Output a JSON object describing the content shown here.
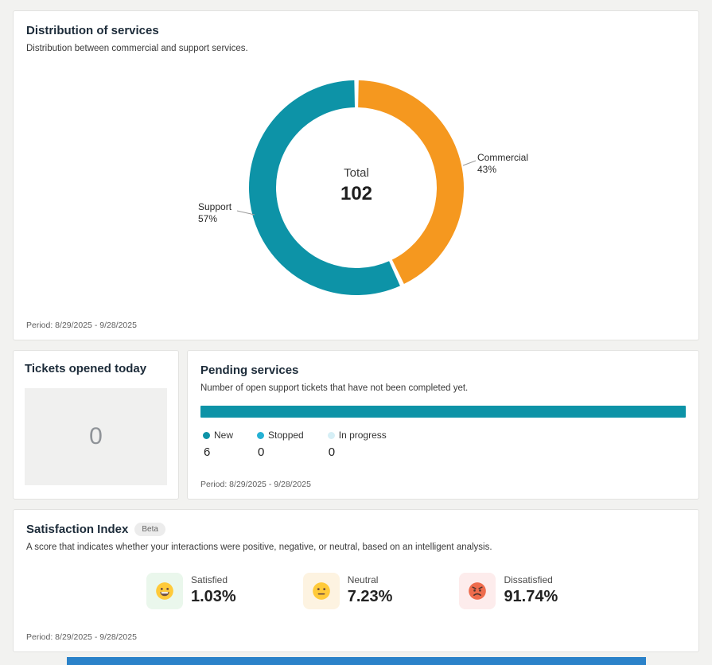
{
  "distribution_card": {
    "title": "Distribution of services",
    "subtitle": "Distribution between commercial and support services.",
    "period": "Period: 8/29/2025 - 9/28/2025"
  },
  "tickets_card": {
    "title": "Tickets opened today",
    "value": "0"
  },
  "pending_card": {
    "title": "Pending services",
    "subtitle": "Number of open support tickets that have not been completed yet.",
    "period": "Period: 8/29/2025 - 9/28/2025",
    "legend": [
      {
        "label": "New",
        "value": "6",
        "color": "#0d93a7"
      },
      {
        "label": "Stopped",
        "value": "0",
        "color": "#25b1d4"
      },
      {
        "label": "In progress",
        "value": "0",
        "color": "#d6eff6"
      }
    ]
  },
  "satisfaction_card": {
    "title": "Satisfaction Index",
    "badge": "Beta",
    "subtitle": "A score that indicates whether your interactions were positive, negative, or neutral, based on an intelligent analysis.",
    "period": "Period: 8/29/2025 - 9/28/2025",
    "items": [
      {
        "label": "Satisfied",
        "value": "1.03%",
        "icon": "grinning-face-icon",
        "bg": "#eaf7ec"
      },
      {
        "label": "Neutral",
        "value": "7.23%",
        "icon": "neutral-face-icon",
        "bg": "#fdf3e1"
      },
      {
        "label": "Dissatisfied",
        "value": "91.74%",
        "icon": "angry-face-icon",
        "bg": "#fdecec"
      }
    ]
  },
  "chart_data": [
    {
      "type": "pie",
      "variant": "donut",
      "title": "Distribution of services",
      "center_label": "Total",
      "center_value": 102,
      "legend_position": "callout-labels",
      "segments": [
        {
          "label": "Commercial",
          "pct": 43,
          "pct_label": "43%",
          "color": "#f5981f"
        },
        {
          "label": "Support",
          "pct": 57,
          "pct_label": "57%",
          "color": "#0d93a7"
        }
      ]
    },
    {
      "type": "bar",
      "title": "Pending services",
      "orientation": "horizontal",
      "categories": [
        "New",
        "Stopped",
        "In progress"
      ],
      "values": [
        6,
        0,
        0
      ],
      "xlim": [
        0,
        6
      ],
      "bar_color": "#0d93a7",
      "colors": [
        "#0d93a7",
        "#25b1d4",
        "#d6eff6"
      ]
    }
  ],
  "partial_bottom_bar": {
    "color": "#2b82c9"
  }
}
